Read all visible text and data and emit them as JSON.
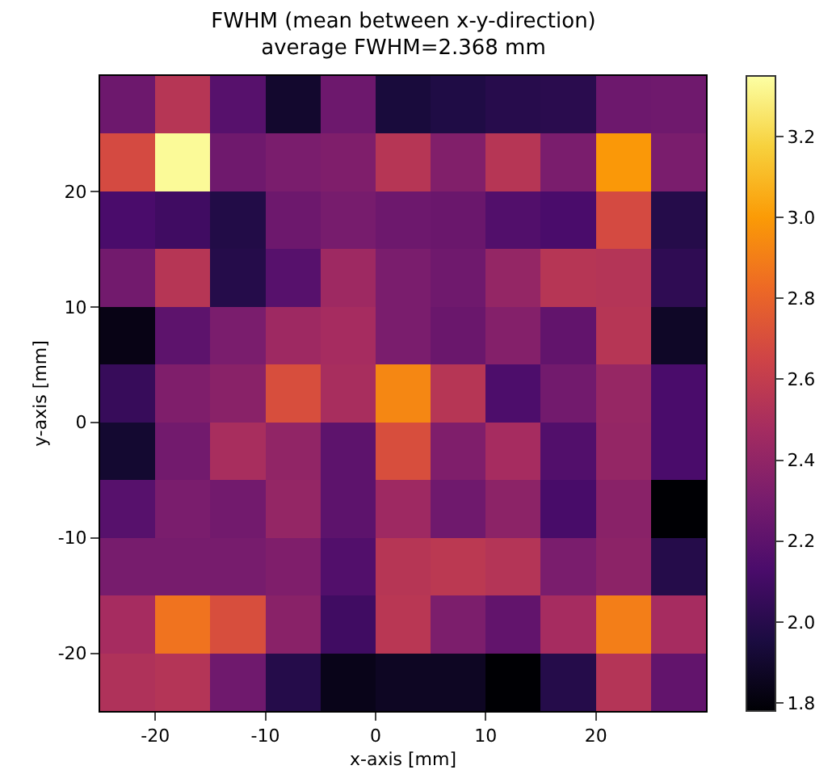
{
  "chart_data": {
    "type": "heatmap",
    "title": "FWHM (mean between x-y-direction)\naverage FWHM=2.368 mm",
    "xlabel": "x-axis [mm]",
    "ylabel": "y-axis [mm]",
    "xlim": [
      -25,
      30
    ],
    "ylim": [
      -25,
      30
    ],
    "xticks": [
      -20,
      -10,
      0,
      10,
      20
    ],
    "yticks": [
      -20,
      -10,
      0,
      10,
      20
    ],
    "clim": [
      1.78,
      3.35
    ],
    "cticks": [
      1.8,
      {
        "value": 2,
        "label": "2.0"
      },
      2.2,
      2.4,
      2.6,
      2.8,
      {
        "value": 3,
        "label": "3.0"
      },
      3.2
    ],
    "cells": [
      [
        2.26,
        2.55,
        2.18,
        1.9,
        2.26,
        1.94,
        1.97,
        2.0,
        2.01,
        2.26,
        2.27
      ],
      [
        2.68,
        3.33,
        2.27,
        2.31,
        2.33,
        2.55,
        2.34,
        2.55,
        2.31,
        2.99,
        2.31
      ],
      [
        2.13,
        2.09,
        1.98,
        2.26,
        2.3,
        2.26,
        2.25,
        2.16,
        2.13,
        2.68,
        1.99
      ],
      [
        2.28,
        2.55,
        1.99,
        2.18,
        2.45,
        2.31,
        2.27,
        2.41,
        2.55,
        2.54,
        2.03
      ],
      [
        1.83,
        2.2,
        2.31,
        2.45,
        2.48,
        2.31,
        2.25,
        2.35,
        2.22,
        2.55,
        1.88
      ],
      [
        2.06,
        2.33,
        2.37,
        2.7,
        2.49,
        2.93,
        2.55,
        2.14,
        2.28,
        2.42,
        2.13
      ],
      [
        1.91,
        2.28,
        2.49,
        2.4,
        2.2,
        2.7,
        2.33,
        2.48,
        2.16,
        2.41,
        2.13
      ],
      [
        2.18,
        2.31,
        2.28,
        2.41,
        2.2,
        2.45,
        2.27,
        2.38,
        2.12,
        2.37,
        1.78
      ],
      [
        2.3,
        2.3,
        2.3,
        2.33,
        2.16,
        2.55,
        2.57,
        2.54,
        2.31,
        2.38,
        1.99
      ],
      [
        2.48,
        2.86,
        2.7,
        2.37,
        2.09,
        2.56,
        2.32,
        2.22,
        2.48,
        2.9,
        2.48
      ],
      [
        2.52,
        2.54,
        2.27,
        1.99,
        1.84,
        1.87,
        1.87,
        1.78,
        1.99,
        2.54,
        2.22
      ]
    ]
  }
}
